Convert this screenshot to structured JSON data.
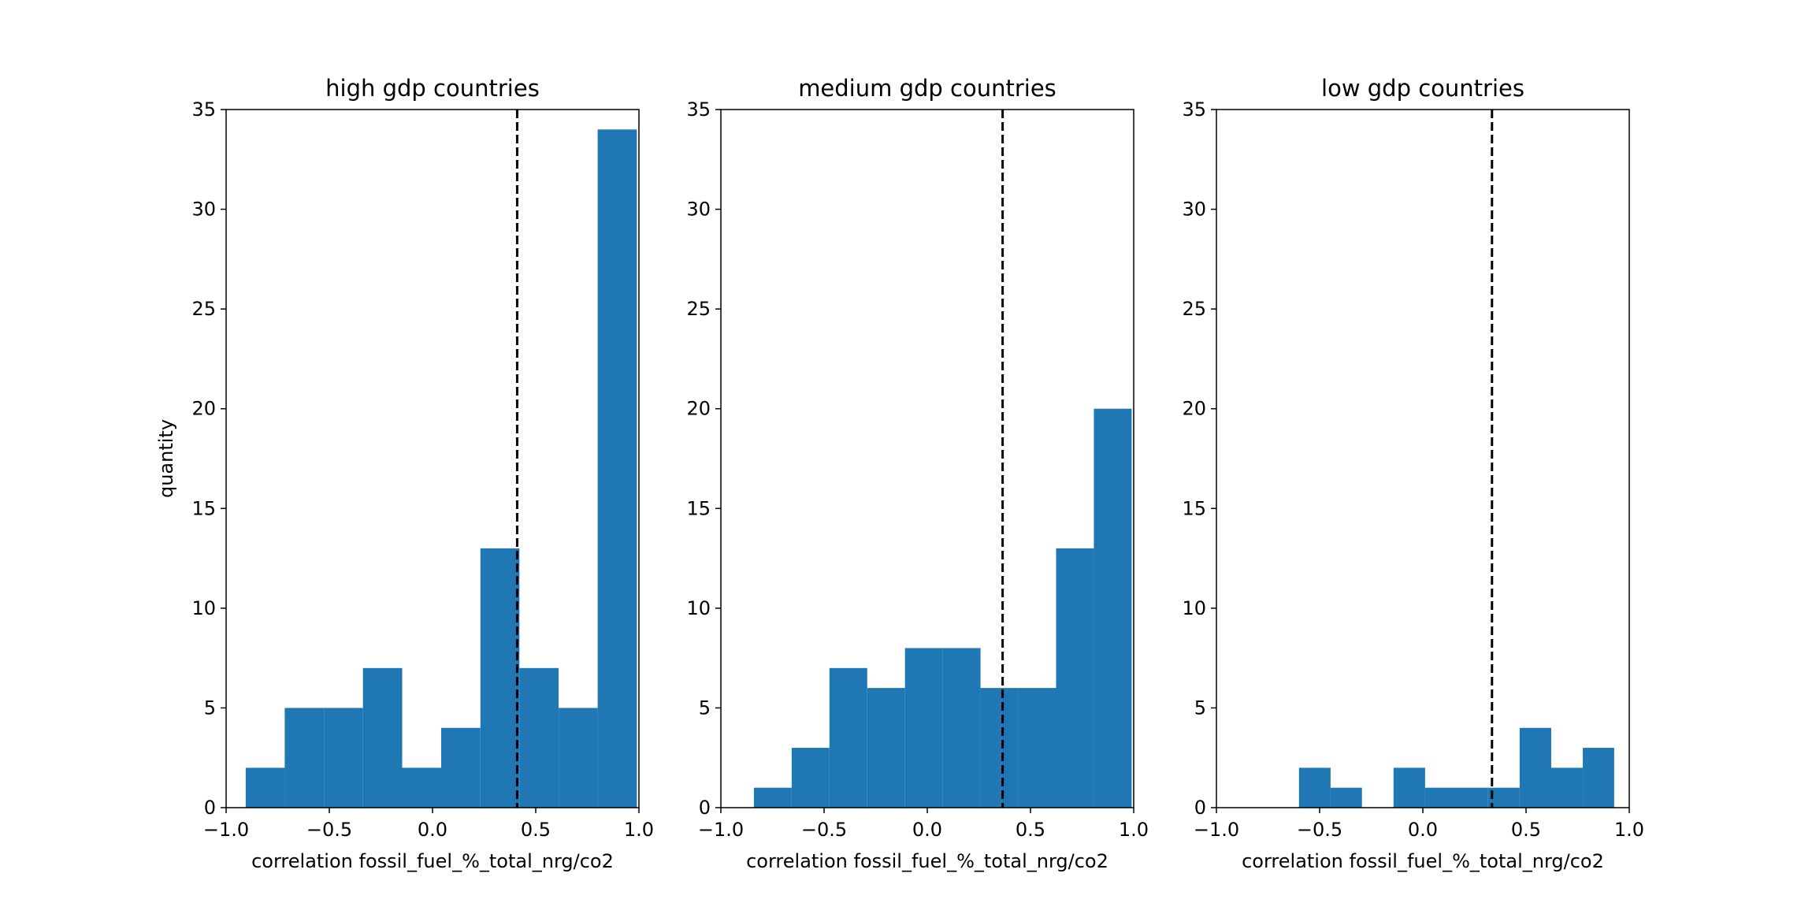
{
  "chart_data": [
    {
      "type": "bar",
      "title": "high gdp countries",
      "xlabel": "correlation fossil_fuel_%_total_nrg/co2",
      "ylabel": "quantity",
      "xlim": [
        -1.0,
        1.0
      ],
      "ylim": [
        0,
        35
      ],
      "xticks": [
        "−1.0",
        "−0.5",
        "0.0",
        "0.5",
        "1.0"
      ],
      "yticks": [
        "0",
        "5",
        "10",
        "15",
        "20",
        "25",
        "30",
        "35"
      ],
      "bin_edges": [
        -0.905,
        -0.716,
        -0.526,
        -0.337,
        -0.147,
        0.042,
        0.232,
        0.421,
        0.611,
        0.8,
        0.99
      ],
      "values": [
        2,
        5,
        5,
        7,
        2,
        4,
        13,
        7,
        5,
        34
      ],
      "mean_line": 0.41,
      "bar_color": "#1f77b4",
      "grid": false
    },
    {
      "type": "bar",
      "title": "medium gdp countries",
      "xlabel": "correlation fossil_fuel_%_total_nrg/co2",
      "ylabel": "",
      "xlim": [
        -1.0,
        1.0
      ],
      "ylim": [
        0,
        35
      ],
      "xticks": [
        "−1.0",
        "−0.5",
        "0.0",
        "0.5",
        "1.0"
      ],
      "yticks": [
        "0",
        "5",
        "10",
        "15",
        "20",
        "25",
        "30",
        "35"
      ],
      "bin_edges": [
        -0.84,
        -0.657,
        -0.474,
        -0.291,
        -0.108,
        0.075,
        0.258,
        0.441,
        0.624,
        0.807,
        0.99
      ],
      "values": [
        1,
        3,
        7,
        6,
        8,
        8,
        6,
        6,
        13,
        20
      ],
      "mean_line": 0.365,
      "bar_color": "#1f77b4",
      "grid": false
    },
    {
      "type": "bar",
      "title": "low gdp countries",
      "xlabel": "correlation fossil_fuel_%_total_nrg/co2",
      "ylabel": "",
      "xlim": [
        -1.0,
        1.0
      ],
      "ylim": [
        0,
        35
      ],
      "xticks": [
        "−1.0",
        "−0.5",
        "0.0",
        "0.5",
        "1.0"
      ],
      "yticks": [
        "0",
        "5",
        "10",
        "15",
        "20",
        "25",
        "30",
        "35"
      ],
      "bin_edges": [
        -0.6,
        -0.447,
        -0.295,
        -0.142,
        0.011,
        0.164,
        0.316,
        0.469,
        0.622,
        0.775,
        0.927
      ],
      "values": [
        2,
        1,
        0,
        2,
        1,
        1,
        1,
        4,
        2,
        3
      ],
      "mean_line": 0.335,
      "bar_color": "#1f77b4",
      "grid": false
    }
  ]
}
